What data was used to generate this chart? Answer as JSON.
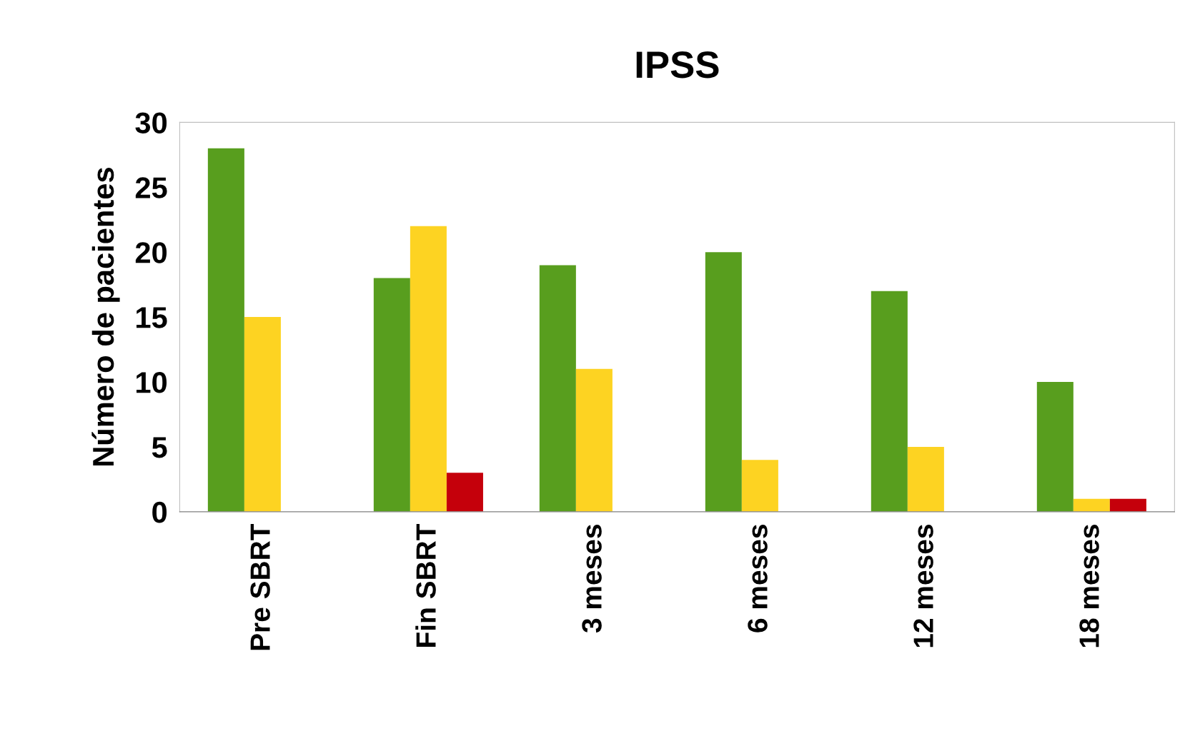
{
  "chart_data": {
    "type": "bar",
    "title": "IPSS",
    "ylabel": "Número de pacientes",
    "categories": [
      "Pre SBRT",
      "Fin SBRT",
      "3 meses",
      "6 meses",
      "12 meses",
      "18 meses"
    ],
    "series": [
      {
        "color": "#589e1e",
        "values": [
          28,
          18,
          19,
          20,
          17,
          10
        ]
      },
      {
        "color": "#fdd322",
        "values": [
          15,
          22,
          11,
          4,
          5,
          1
        ]
      },
      {
        "color": "#c5000b",
        "values": [
          null,
          3,
          null,
          null,
          null,
          1
        ]
      }
    ],
    "ylim": [
      0,
      30
    ],
    "yticks": [
      0,
      5,
      10,
      15,
      20,
      25,
      30
    ],
    "grid": false,
    "legend": false
  }
}
